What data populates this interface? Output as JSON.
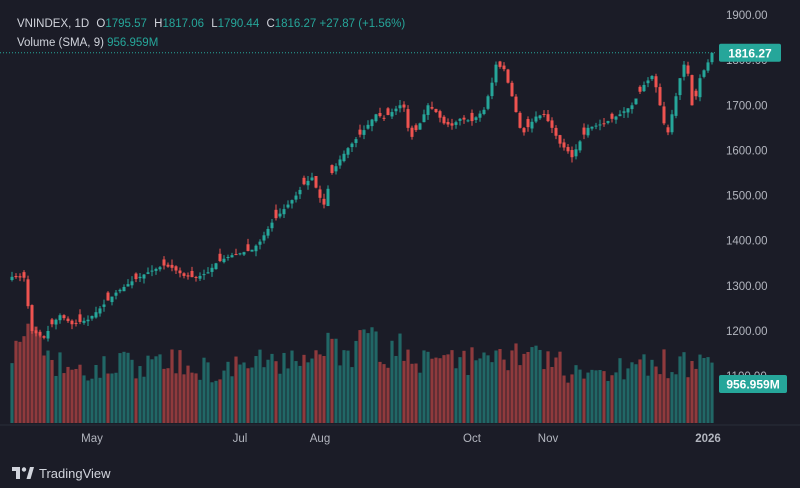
{
  "legend": {
    "symbol": "VNINDEX",
    "interval": "1D",
    "o_label": "O",
    "o": "1795.57",
    "h_label": "H",
    "h": "1817.06",
    "l_label": "L",
    "l": "1790.44",
    "c_label": "C",
    "c": "1816.27",
    "change": "+27.87 (+1.56%)",
    "volume_label": "Volume (SMA, 9)",
    "volume_value": "956.959M"
  },
  "footer": {
    "brand": "TradingView"
  },
  "colors": {
    "up": "#26a69a",
    "down": "#ef5350",
    "background": "#1b1c27",
    "text": "#d1d4dc",
    "grid": "#2a2e39"
  },
  "chart_data": {
    "type": "candlestick",
    "symbol": "VNINDEX",
    "interval": "1D",
    "y_axis": {
      "side": "right",
      "ylim": [
        1080,
        1920
      ],
      "ticks": [
        "1900.00",
        "1800.00",
        "1700.00",
        "1600.00",
        "1500.00",
        "1400.00",
        "1300.00",
        "1200.00",
        "1100.00"
      ]
    },
    "x_axis": {
      "labels": [
        "May",
        "Jul",
        "Aug",
        "Oct",
        "Nov",
        "2026"
      ]
    },
    "last_price": "1816.27",
    "last_volume": "956.959M",
    "price_keypoints": [
      [
        0,
        1320
      ],
      [
        3,
        1318
      ],
      [
        4,
        1255
      ],
      [
        5,
        1200
      ],
      [
        8,
        1185
      ],
      [
        10,
        1215
      ],
      [
        12,
        1235
      ],
      [
        14,
        1222
      ],
      [
        15,
        1215
      ],
      [
        19,
        1225
      ],
      [
        22,
        1250
      ],
      [
        26,
        1285
      ],
      [
        30,
        1310
      ],
      [
        34,
        1330
      ],
      [
        38,
        1345
      ],
      [
        40,
        1340
      ],
      [
        43,
        1322
      ],
      [
        46,
        1318
      ],
      [
        49,
        1330
      ],
      [
        51,
        1350
      ],
      [
        53,
        1360
      ],
      [
        55,
        1368
      ],
      [
        57,
        1372
      ],
      [
        60,
        1380
      ],
      [
        62,
        1398
      ],
      [
        65,
        1440
      ],
      [
        68,
        1470
      ],
      [
        71,
        1500
      ],
      [
        73,
        1525
      ],
      [
        75,
        1540
      ],
      [
        77,
        1495
      ],
      [
        78,
        1480
      ],
      [
        80,
        1550
      ],
      [
        82,
        1580
      ],
      [
        84,
        1605
      ],
      [
        86,
        1625
      ],
      [
        88,
        1645
      ],
      [
        91,
        1680
      ],
      [
        93,
        1672
      ],
      [
        95,
        1685
      ],
      [
        97,
        1700
      ],
      [
        98,
        1695
      ],
      [
        99,
        1650
      ],
      [
        100,
        1630
      ],
      [
        102,
        1660
      ],
      [
        104,
        1700
      ],
      [
        106,
        1685
      ],
      [
        108,
        1660
      ],
      [
        110,
        1655
      ],
      [
        112,
        1670
      ],
      [
        115,
        1665
      ],
      [
        118,
        1690
      ],
      [
        120,
        1750
      ],
      [
        121,
        1790
      ],
      [
        123,
        1780
      ],
      [
        125,
        1720
      ],
      [
        127,
        1650
      ],
      [
        128,
        1640
      ],
      [
        131,
        1675
      ],
      [
        133,
        1680
      ],
      [
        135,
        1650
      ],
      [
        137,
        1615
      ],
      [
        139,
        1598
      ],
      [
        140,
        1585
      ],
      [
        142,
        1620
      ],
      [
        144,
        1650
      ],
      [
        148,
        1660
      ],
      [
        152,
        1680
      ],
      [
        155,
        1700
      ],
      [
        158,
        1745
      ],
      [
        160,
        1765
      ],
      [
        161,
        1740
      ],
      [
        162,
        1700
      ],
      [
        163,
        1660
      ],
      [
        164,
        1640
      ],
      [
        165,
        1680
      ],
      [
        166,
        1720
      ],
      [
        167,
        1760
      ],
      [
        168,
        1790
      ],
      [
        169,
        1770
      ],
      [
        170,
        1700
      ],
      [
        171,
        1720
      ],
      [
        172,
        1760
      ],
      [
        174,
        1795
      ],
      [
        175,
        1816.27
      ]
    ],
    "volume_keypoints": [
      [
        0,
        700
      ],
      [
        5,
        850
      ],
      [
        9,
        650
      ],
      [
        13,
        560
      ],
      [
        18,
        520
      ],
      [
        23,
        560
      ],
      [
        28,
        590
      ],
      [
        32,
        570
      ],
      [
        36,
        560
      ],
      [
        40,
        620
      ],
      [
        45,
        560
      ],
      [
        50,
        530
      ],
      [
        55,
        540
      ],
      [
        60,
        580
      ],
      [
        65,
        620
      ],
      [
        70,
        630
      ],
      [
        74,
        660
      ],
      [
        77,
        820
      ],
      [
        80,
        760
      ],
      [
        84,
        680
      ],
      [
        88,
        840
      ],
      [
        92,
        720
      ],
      [
        96,
        710
      ],
      [
        99,
        760
      ],
      [
        103,
        640
      ],
      [
        107,
        560
      ],
      [
        111,
        600
      ],
      [
        115,
        640
      ],
      [
        119,
        640
      ],
      [
        121,
        700
      ],
      [
        124,
        680
      ],
      [
        127,
        680
      ],
      [
        131,
        620
      ],
      [
        135,
        620
      ],
      [
        139,
        530
      ],
      [
        143,
        560
      ],
      [
        147,
        540
      ],
      [
        151,
        560
      ],
      [
        155,
        550
      ],
      [
        159,
        570
      ],
      [
        163,
        590
      ],
      [
        167,
        600
      ],
      [
        171,
        620
      ],
      [
        175,
        650
      ]
    ]
  }
}
